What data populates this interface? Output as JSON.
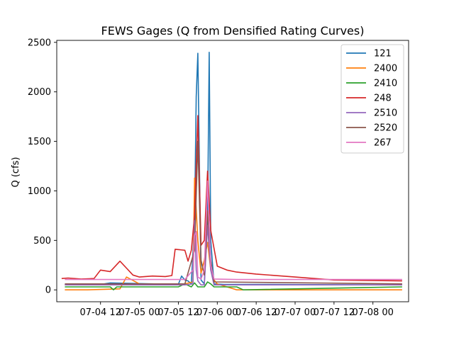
{
  "chart_data": {
    "type": "line",
    "title": "FEWS Gages (Q from Densified Rating Curves)",
    "xlabel": "",
    "ylabel": "Q (cfs)",
    "xlim": [
      "2021-07-03 22:30",
      "2021-07-08 11:00"
    ],
    "ylim": [
      -120,
      2520
    ],
    "xticks": [
      {
        "value": "2021-07-04 12:00",
        "label": "07-04 12"
      },
      {
        "value": "2021-07-05 00:00",
        "label": "07-05 00"
      },
      {
        "value": "2021-07-05 12:00",
        "label": "07-05 12"
      },
      {
        "value": "2021-07-06 00:00",
        "label": "07-06 00"
      },
      {
        "value": "2021-07-06 12:00",
        "label": "07-06 12"
      },
      {
        "value": "2021-07-07 00:00",
        "label": "07-07 00"
      },
      {
        "value": "2021-07-07 12:00",
        "label": "07-07 12"
      },
      {
        "value": "2021-07-08 00:00",
        "label": "07-08 00"
      }
    ],
    "yticks": [
      0,
      500,
      1000,
      1500,
      2000,
      2500
    ],
    "grid": false,
    "legend": "top-right",
    "series": [
      {
        "name": "121",
        "color": "#1f77b4",
        "x": [
          "2021-07-04 01:00",
          "2021-07-04 12:00",
          "2021-07-04 15:00",
          "2021-07-05 12:00",
          "2021-07-05 13:00",
          "2021-07-05 14:00",
          "2021-07-05 15:00",
          "2021-07-05 16:00",
          "2021-07-05 17:00",
          "2021-07-05 17:30",
          "2021-07-05 18:00",
          "2021-07-05 19:00",
          "2021-07-05 20:00",
          "2021-07-05 21:00",
          "2021-07-05 21:30",
          "2021-07-05 22:00",
          "2021-07-05 23:00",
          "2021-07-06 02:00",
          "2021-07-06 12:00",
          "2021-07-08 09:00"
        ],
        "y": [
          50,
          55,
          70,
          55,
          140,
          100,
          90,
          60,
          700,
          1950,
          2390,
          100,
          60,
          700,
          2400,
          500,
          60,
          55,
          55,
          50
        ]
      },
      {
        "name": "2400",
        "color": "#ff7f0e",
        "x": [
          "2021-07-04 01:00",
          "2021-07-04 03:00",
          "2021-07-04 08:00",
          "2021-07-04 18:00",
          "2021-07-04 20:00",
          "2021-07-05 00:00",
          "2021-07-05 14:00",
          "2021-07-05 16:30",
          "2021-07-05 17:00",
          "2021-07-05 18:00",
          "2021-07-05 19:00",
          "2021-07-05 20:00",
          "2021-07-05 21:00",
          "2021-07-05 22:00",
          "2021-07-05 23:00",
          "2021-07-06 00:00",
          "2021-07-06 02:00",
          "2021-07-06 04:00",
          "2021-07-06 06:00",
          "2021-07-06 12:00",
          "2021-07-07 00:00",
          "2021-07-07 12:00",
          "2021-07-08 09:00"
        ],
        "y": [
          0,
          0,
          0,
          10,
          130,
          60,
          60,
          80,
          1130,
          500,
          170,
          300,
          480,
          200,
          100,
          60,
          40,
          20,
          0,
          0,
          0,
          0,
          0
        ]
      },
      {
        "name": "2410",
        "color": "#2ca02c",
        "x": [
          "2021-07-04 01:00",
          "2021-07-04 15:00",
          "2021-07-04 16:00",
          "2021-07-04 17:00",
          "2021-07-05 12:00",
          "2021-07-05 14:00",
          "2021-07-05 16:00",
          "2021-07-05 17:00",
          "2021-07-05 18:00",
          "2021-07-05 19:00",
          "2021-07-05 20:00",
          "2021-07-05 21:00",
          "2021-07-05 22:00",
          "2021-07-05 23:00",
          "2021-07-06 06:00",
          "2021-07-06 08:00",
          "2021-07-08 09:00"
        ],
        "y": [
          30,
          30,
          0,
          30,
          30,
          60,
          30,
          70,
          30,
          30,
          30,
          80,
          60,
          30,
          30,
          0,
          30
        ]
      },
      {
        "name": "248",
        "color": "#d62728",
        "x": [
          "2021-07-04 00:00",
          "2021-07-04 02:00",
          "2021-07-04 06:00",
          "2021-07-04 10:00",
          "2021-07-04 12:00",
          "2021-07-04 15:00",
          "2021-07-04 18:00",
          "2021-07-04 20:00",
          "2021-07-04 22:00",
          "2021-07-05 00:00",
          "2021-07-05 04:00",
          "2021-07-05 08:00",
          "2021-07-05 10:00",
          "2021-07-05 11:00",
          "2021-07-05 14:00",
          "2021-07-05 15:00",
          "2021-07-05 16:00",
          "2021-07-05 17:00",
          "2021-07-05 18:00",
          "2021-07-05 19:00",
          "2021-07-05 20:00",
          "2021-07-05 21:00",
          "2021-07-05 22:00",
          "2021-07-06 00:00",
          "2021-07-06 03:00",
          "2021-07-06 06:00",
          "2021-07-06 12:00",
          "2021-07-07 00:00",
          "2021-07-07 12:00",
          "2021-07-08 09:00"
        ],
        "y": [
          115,
          120,
          110,
          115,
          200,
          185,
          290,
          220,
          150,
          130,
          140,
          135,
          145,
          410,
          400,
          290,
          400,
          750,
          1760,
          450,
          500,
          1200,
          600,
          240,
          200,
          180,
          160,
          130,
          100,
          90
        ]
      },
      {
        "name": "2510",
        "color": "#9467bd",
        "x": [
          "2021-07-04 01:00",
          "2021-07-05 14:00",
          "2021-07-05 16:30",
          "2021-07-05 17:00",
          "2021-07-05 17:30",
          "2021-07-05 18:00",
          "2021-07-05 19:00",
          "2021-07-05 20:00",
          "2021-07-05 21:00",
          "2021-07-05 22:00",
          "2021-07-05 23:00",
          "2021-07-08 09:00"
        ],
        "y": [
          50,
          50,
          60,
          700,
          200,
          90,
          50,
          50,
          650,
          200,
          50,
          50
        ]
      },
      {
        "name": "2520",
        "color": "#8c564b",
        "x": [
          "2021-07-04 01:00",
          "2021-07-05 14:00",
          "2021-07-05 17:00",
          "2021-07-05 18:00",
          "2021-07-05 19:00",
          "2021-07-05 20:00",
          "2021-07-05 21:00",
          "2021-07-05 22:00",
          "2021-07-05 23:00",
          "2021-07-08 09:00"
        ],
        "y": [
          60,
          60,
          400,
          1500,
          300,
          150,
          800,
          300,
          80,
          60
        ]
      },
      {
        "name": "267",
        "color": "#e377c2",
        "x": [
          "2021-07-04 01:00",
          "2021-07-05 14:00",
          "2021-07-05 16:30",
          "2021-07-05 17:00",
          "2021-07-05 17:30",
          "2021-07-05 18:00",
          "2021-07-05 19:00",
          "2021-07-05 20:00",
          "2021-07-05 21:00",
          "2021-07-05 22:00",
          "2021-07-05 23:00",
          "2021-07-06 06:00",
          "2021-07-08 09:00"
        ],
        "y": [
          105,
          105,
          200,
          550,
          590,
          130,
          110,
          200,
          1100,
          250,
          110,
          105,
          105
        ]
      }
    ]
  }
}
